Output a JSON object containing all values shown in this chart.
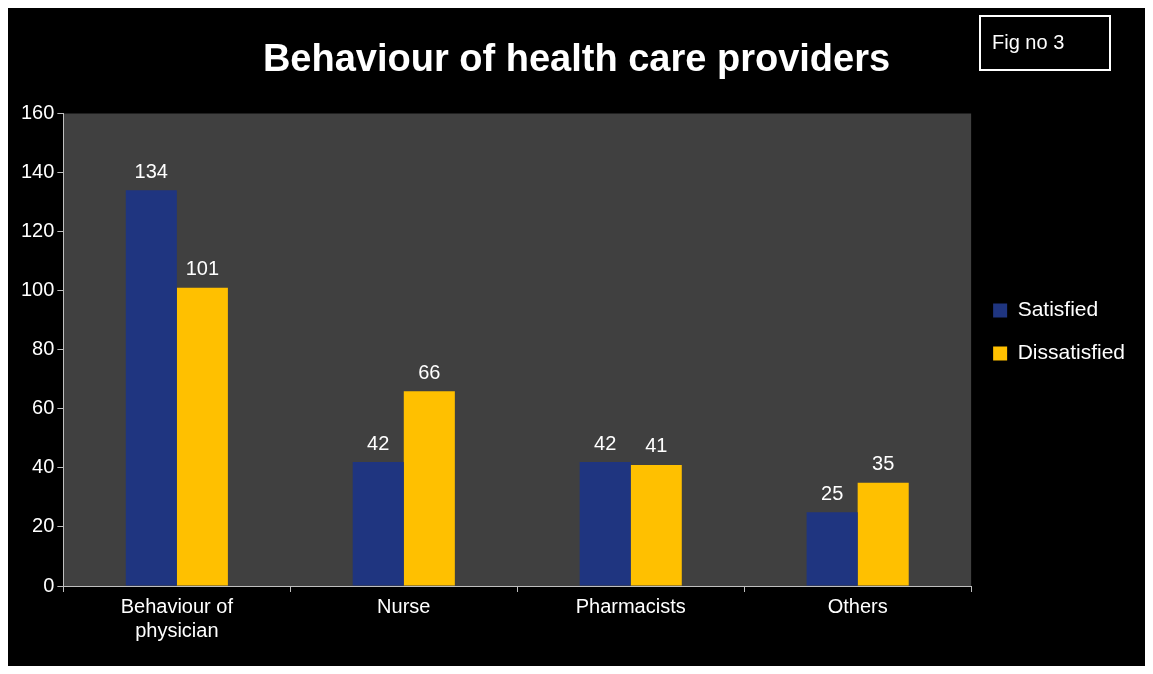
{
  "chart_data": {
    "type": "bar",
    "title": "Behaviour of health care providers",
    "annotations": [
      "Fig no 3"
    ],
    "categories": [
      "Behaviour of physician",
      "Nurse",
      "Pharmacists",
      "Others"
    ],
    "series": [
      {
        "name": "Satisfied",
        "color": "#1f3580",
        "values": [
          134,
          42,
          42,
          25
        ]
      },
      {
        "name": "Dissatisfied",
        "color": "#ffc000",
        "values": [
          101,
          66,
          41,
          35
        ]
      }
    ],
    "ylim": [
      0,
      160
    ],
    "yticks": [
      0,
      20,
      40,
      60,
      80,
      100,
      120,
      140,
      160
    ],
    "grid": false,
    "legend": "right",
    "data_labels": true
  }
}
